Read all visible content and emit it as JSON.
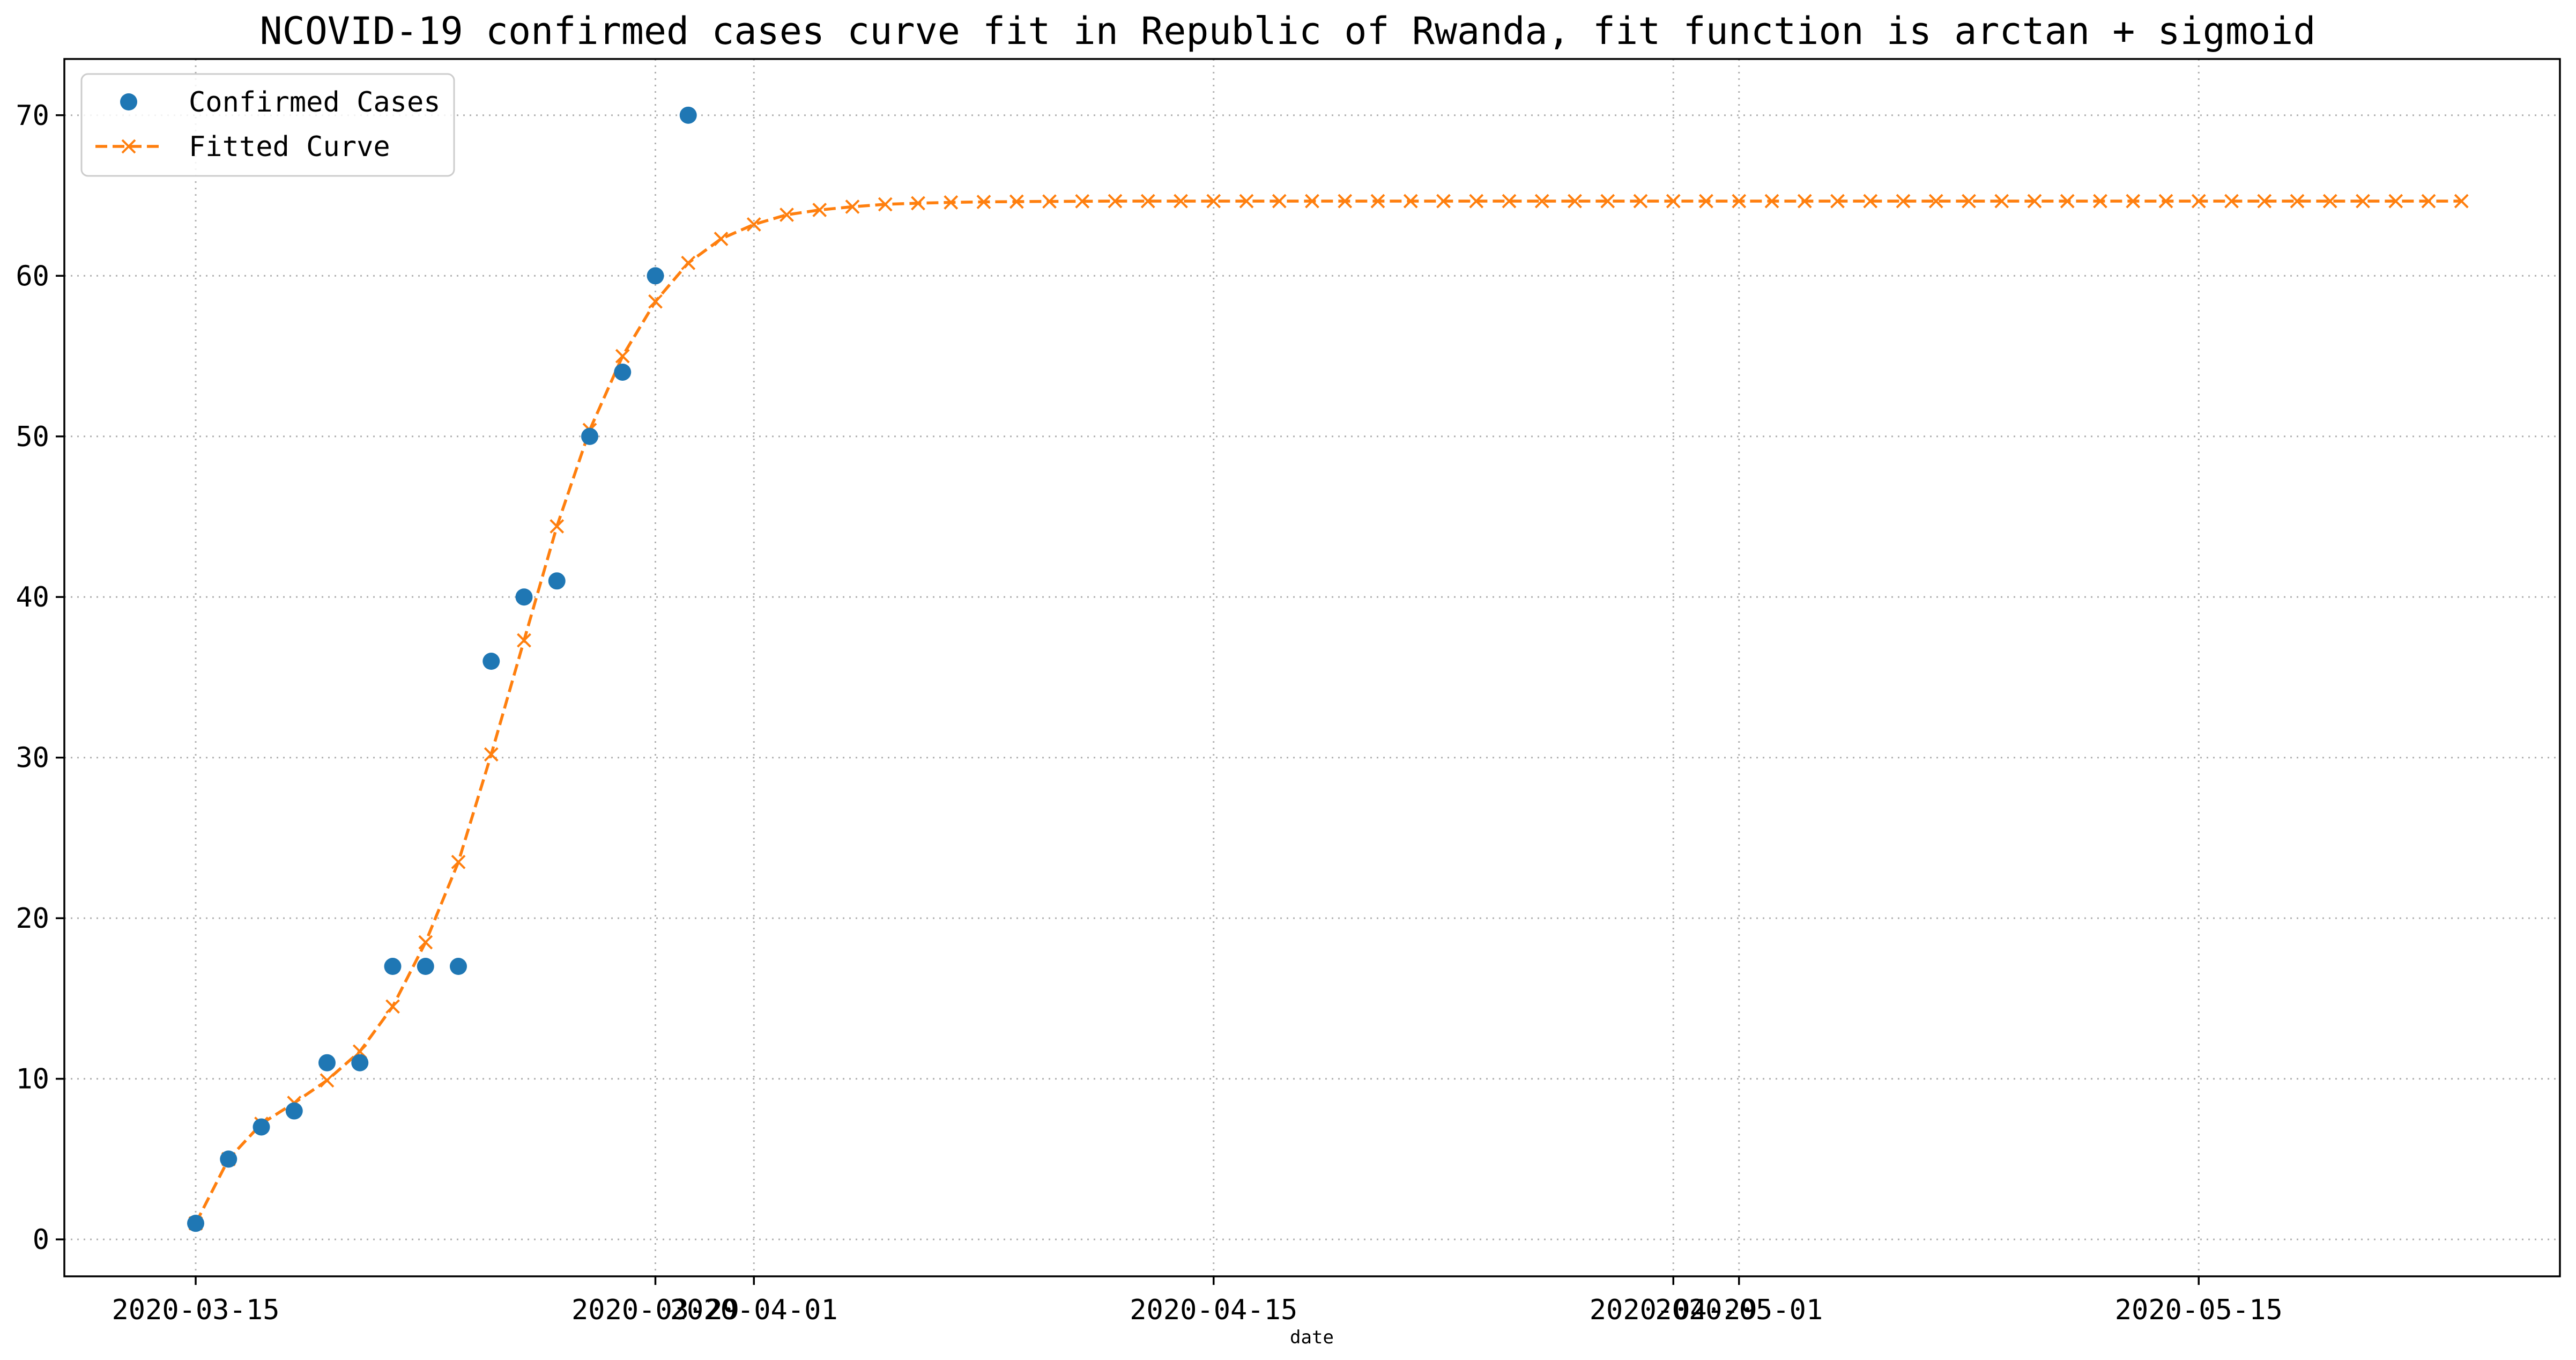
{
  "colors": {
    "observed": "#1f77b4",
    "fitted": "#ff7f0e"
  },
  "chart_data": {
    "type": "line",
    "title": "NCOVID-19 confirmed cases curve fit in Republic of Rwanda, fit function is arctan + sigmoid",
    "xlabel": "date",
    "ylabel": "",
    "x_start_date": "2020-03-15",
    "xlim": [
      "2020-03-11",
      "2020-05-26"
    ],
    "ylim": [
      -2.3,
      73.5
    ],
    "x_ticks": [
      {
        "date": "2020-03-15",
        "label": "2020-03-15"
      },
      {
        "date": "2020-03-29",
        "label": "2020-03-29"
      },
      {
        "date": "2020-04-01",
        "label": "2020-04-01"
      },
      {
        "date": "2020-04-15",
        "label": "2020-04-15"
      },
      {
        "date": "2020-04-29",
        "label": "2020-04-29"
      },
      {
        "date": "2020-05-01",
        "label": "2020-05-01"
      },
      {
        "date": "2020-05-15",
        "label": "2020-05-15"
      }
    ],
    "y_ticks": [
      0,
      10,
      20,
      30,
      40,
      50,
      60,
      70
    ],
    "grid": true,
    "legend_position": "top-left",
    "series": [
      {
        "name": "Confirmed Cases",
        "style": "markers",
        "x_dates": [
          "2020-03-15",
          "2020-03-16",
          "2020-03-17",
          "2020-03-18",
          "2020-03-19",
          "2020-03-20",
          "2020-03-21",
          "2020-03-22",
          "2020-03-23",
          "2020-03-24",
          "2020-03-25",
          "2020-03-26",
          "2020-03-27",
          "2020-03-28",
          "2020-03-29",
          "2020-03-30"
        ],
        "values": [
          1,
          5,
          7,
          8,
          11,
          11,
          17,
          17,
          17,
          36,
          40,
          41,
          50,
          54,
          60,
          70
        ]
      },
      {
        "name": "Fitted Curve",
        "style": "dashed-line-x-markers",
        "x_dates_from": "2020-03-15",
        "x_dates_to": "2020-05-23",
        "values": [
          1.0,
          5.0,
          7.2,
          8.5,
          9.9,
          11.7,
          14.5,
          18.5,
          23.5,
          30.2,
          37.3,
          44.4,
          50.4,
          55.0,
          58.4,
          60.8,
          62.3,
          63.2,
          63.8,
          64.1,
          64.3,
          64.45,
          64.52,
          64.57,
          64.6,
          64.62,
          64.63,
          64.64,
          64.65,
          64.65,
          64.65,
          64.65,
          64.65,
          64.65,
          64.65,
          64.65,
          64.65,
          64.65,
          64.65,
          64.65,
          64.65,
          64.65,
          64.65,
          64.65,
          64.65,
          64.65,
          64.65,
          64.65,
          64.65,
          64.65,
          64.65,
          64.65,
          64.65,
          64.65,
          64.65,
          64.65,
          64.65,
          64.65,
          64.65,
          64.65,
          64.65,
          64.65,
          64.65,
          64.65,
          64.65,
          64.65,
          64.65,
          64.65,
          64.65,
          64.65
        ]
      }
    ]
  }
}
